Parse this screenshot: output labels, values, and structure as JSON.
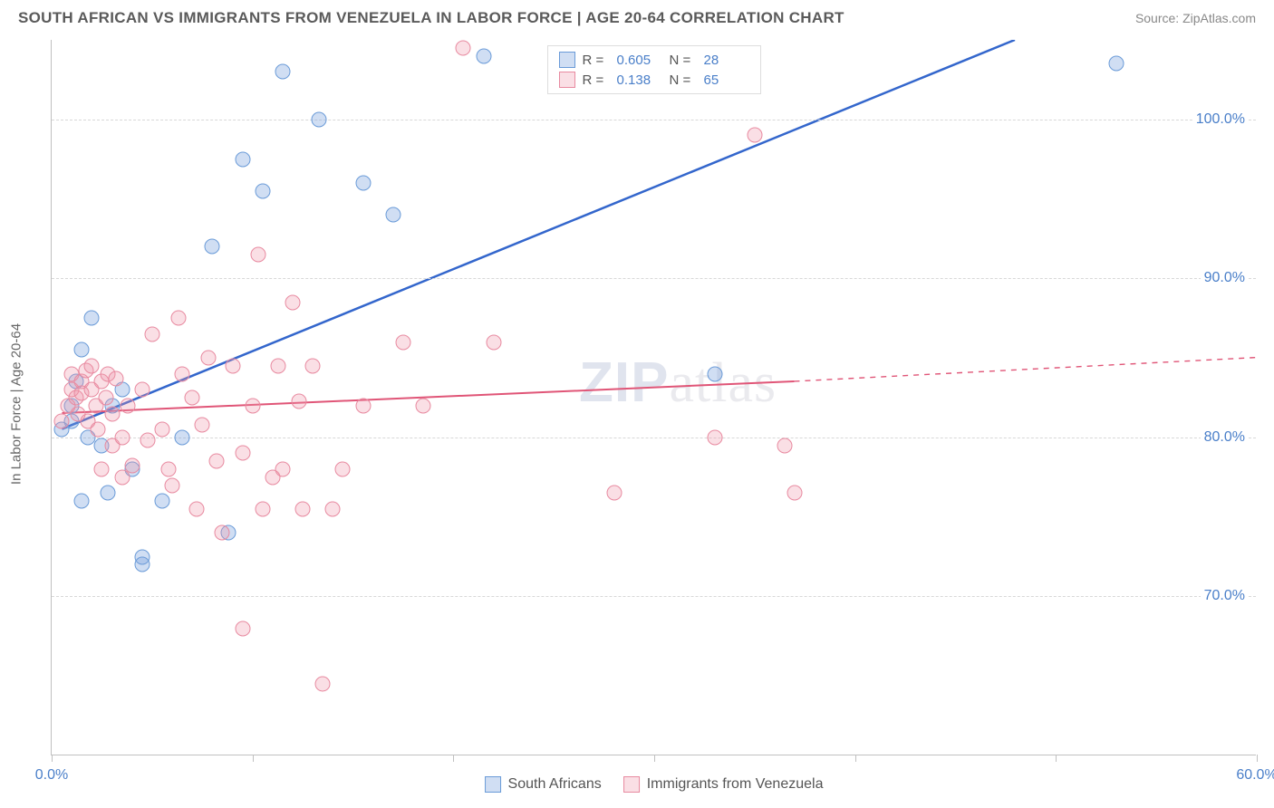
{
  "header": {
    "title": "SOUTH AFRICAN VS IMMIGRANTS FROM VENEZUELA IN LABOR FORCE | AGE 20-64 CORRELATION CHART",
    "source": "Source: ZipAtlas.com"
  },
  "chart": {
    "type": "scatter",
    "y_axis_label": "In Labor Force | Age 20-64",
    "xlim": [
      0,
      60
    ],
    "ylim": [
      60,
      105
    ],
    "x_ticks": [
      0,
      10,
      20,
      30,
      40,
      50,
      60
    ],
    "x_tick_labels": [
      "0.0%",
      "",
      "",
      "",
      "",
      "",
      "60.0%"
    ],
    "y_ticks": [
      70,
      80,
      90,
      100
    ],
    "y_tick_labels": [
      "70.0%",
      "80.0%",
      "90.0%",
      "100.0%"
    ],
    "grid_color": "#d8d8d8",
    "background_color": "#ffffff",
    "axis_color": "#c0c0c0",
    "tick_label_color": "#4a7fc9",
    "series": [
      {
        "name": "South Africans",
        "fill_color": "rgba(120,160,220,0.35)",
        "border_color": "#6a9bd8",
        "line_color": "#3366cc",
        "line_width": 2.5,
        "R": "0.605",
        "N": "28",
        "trend_start": {
          "x": 0.5,
          "y": 80.5
        },
        "trend_end": {
          "x": 48,
          "y": 105
        },
        "points": [
          {
            "x": 0.5,
            "y": 80.5
          },
          {
            "x": 1,
            "y": 81
          },
          {
            "x": 1,
            "y": 82
          },
          {
            "x": 1.2,
            "y": 83.5
          },
          {
            "x": 1.5,
            "y": 85.5
          },
          {
            "x": 2,
            "y": 87.5
          },
          {
            "x": 2.5,
            "y": 79.5
          },
          {
            "x": 2.8,
            "y": 76.5
          },
          {
            "x": 1.5,
            "y": 76
          },
          {
            "x": 1.8,
            "y": 80
          },
          {
            "x": 3,
            "y": 82
          },
          {
            "x": 3.5,
            "y": 83
          },
          {
            "x": 4,
            "y": 78
          },
          {
            "x": 4.5,
            "y": 72.5
          },
          {
            "x": 4.5,
            "y": 72
          },
          {
            "x": 5.5,
            "y": 76
          },
          {
            "x": 6.5,
            "y": 80
          },
          {
            "x": 8,
            "y": 92
          },
          {
            "x": 8.8,
            "y": 74
          },
          {
            "x": 9.5,
            "y": 97.5
          },
          {
            "x": 10.5,
            "y": 95.5
          },
          {
            "x": 11.5,
            "y": 103
          },
          {
            "x": 13.3,
            "y": 100
          },
          {
            "x": 15.5,
            "y": 96
          },
          {
            "x": 17,
            "y": 94
          },
          {
            "x": 21.5,
            "y": 104
          },
          {
            "x": 33,
            "y": 84
          },
          {
            "x": 53,
            "y": 103.5
          }
        ]
      },
      {
        "name": "Immigrants from Venezuela",
        "fill_color": "rgba(240,150,170,0.3)",
        "border_color": "#e88aa0",
        "line_color": "#e05577",
        "line_width": 2,
        "R": "0.138",
        "N": "65",
        "trend_start": {
          "x": 0.5,
          "y": 81.5
        },
        "trend_end": {
          "x": 37,
          "y": 83.5
        },
        "trend_dash_end": {
          "x": 60,
          "y": 85
        },
        "points": [
          {
            "x": 0.5,
            "y": 81
          },
          {
            "x": 0.8,
            "y": 82
          },
          {
            "x": 1,
            "y": 83
          },
          {
            "x": 1,
            "y": 84
          },
          {
            "x": 1.2,
            "y": 82.5
          },
          {
            "x": 1.3,
            "y": 81.5
          },
          {
            "x": 1.5,
            "y": 83.5
          },
          {
            "x": 1.5,
            "y": 82.8
          },
          {
            "x": 1.7,
            "y": 84.2
          },
          {
            "x": 1.8,
            "y": 81
          },
          {
            "x": 2,
            "y": 83
          },
          {
            "x": 2,
            "y": 84.5
          },
          {
            "x": 2.2,
            "y": 82
          },
          {
            "x": 2.3,
            "y": 80.5
          },
          {
            "x": 2.5,
            "y": 83.5
          },
          {
            "x": 2.5,
            "y": 78
          },
          {
            "x": 2.7,
            "y": 82.5
          },
          {
            "x": 2.8,
            "y": 84
          },
          {
            "x": 3,
            "y": 79.5
          },
          {
            "x": 3,
            "y": 81.5
          },
          {
            "x": 3.2,
            "y": 83.7
          },
          {
            "x": 3.5,
            "y": 80
          },
          {
            "x": 3.5,
            "y": 77.5
          },
          {
            "x": 3.8,
            "y": 82
          },
          {
            "x": 4,
            "y": 78.2
          },
          {
            "x": 4.5,
            "y": 83
          },
          {
            "x": 4.8,
            "y": 79.8
          },
          {
            "x": 5,
            "y": 86.5
          },
          {
            "x": 5.5,
            "y": 80.5
          },
          {
            "x": 5.8,
            "y": 78
          },
          {
            "x": 6,
            "y": 77
          },
          {
            "x": 6.3,
            "y": 87.5
          },
          {
            "x": 6.5,
            "y": 84
          },
          {
            "x": 7,
            "y": 82.5
          },
          {
            "x": 7.2,
            "y": 75.5
          },
          {
            "x": 7.5,
            "y": 80.8
          },
          {
            "x": 7.8,
            "y": 85
          },
          {
            "x": 8.2,
            "y": 78.5
          },
          {
            "x": 8.5,
            "y": 74
          },
          {
            "x": 9,
            "y": 84.5
          },
          {
            "x": 9.5,
            "y": 79
          },
          {
            "x": 9.5,
            "y": 68
          },
          {
            "x": 10,
            "y": 82
          },
          {
            "x": 10.3,
            "y": 91.5
          },
          {
            "x": 10.5,
            "y": 75.5
          },
          {
            "x": 11,
            "y": 77.5
          },
          {
            "x": 11.3,
            "y": 84.5
          },
          {
            "x": 11.5,
            "y": 78
          },
          {
            "x": 12,
            "y": 88.5
          },
          {
            "x": 12.3,
            "y": 82.3
          },
          {
            "x": 12.5,
            "y": 75.5
          },
          {
            "x": 13,
            "y": 84.5
          },
          {
            "x": 13.5,
            "y": 64.5
          },
          {
            "x": 14,
            "y": 75.5
          },
          {
            "x": 14.5,
            "y": 78
          },
          {
            "x": 15.5,
            "y": 82
          },
          {
            "x": 17.5,
            "y": 86
          },
          {
            "x": 18.5,
            "y": 82
          },
          {
            "x": 20.5,
            "y": 104.5
          },
          {
            "x": 22,
            "y": 86
          },
          {
            "x": 28,
            "y": 76.5
          },
          {
            "x": 33,
            "y": 80
          },
          {
            "x": 35,
            "y": 99
          },
          {
            "x": 36.5,
            "y": 79.5
          },
          {
            "x": 37,
            "y": 76.5
          }
        ]
      }
    ]
  },
  "legend_top": {
    "rows": [
      {
        "swatch_ref": 0,
        "r_label": "R =",
        "r_val": "0.605",
        "n_label": "N =",
        "n_val": "28"
      },
      {
        "swatch_ref": 1,
        "r_label": "R =",
        "r_val": "0.138",
        "n_label": "N =",
        "n_val": "65"
      }
    ]
  },
  "legend_bottom": {
    "items": [
      {
        "swatch_ref": 0,
        "label": "South Africans"
      },
      {
        "swatch_ref": 1,
        "label": "Immigrants from Venezuela"
      }
    ]
  },
  "watermark": "ZIPatlas"
}
